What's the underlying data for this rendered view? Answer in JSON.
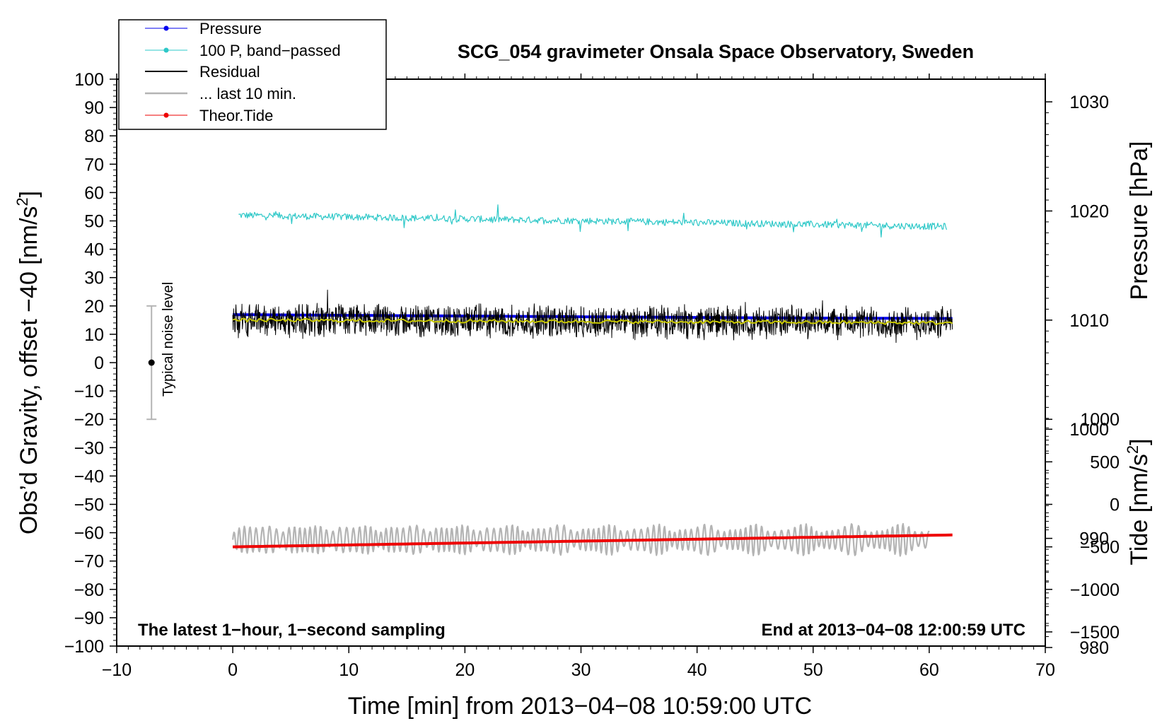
{
  "chart_data": {
    "type": "line",
    "title": "SCG_054 gravimeter Onsala Space Observatory, Sweden",
    "xlabel": "Time [min] from 2013−04−08 10:59:00 UTC",
    "xlim": [
      -10,
      70
    ],
    "xticks": [
      -10,
      0,
      10,
      20,
      30,
      40,
      50,
      60,
      70
    ],
    "xtick_labels": [
      "−10",
      "0",
      "10",
      "20",
      "30",
      "40",
      "50",
      "60",
      "70"
    ],
    "y_left": {
      "label_main": "Obs’d Gravity, offset −40 [nm/s",
      "label_sup": "2",
      "label_end": "]",
      "lim": [
        -100,
        100
      ],
      "ticks": [
        100,
        90,
        80,
        70,
        60,
        50,
        40,
        30,
        20,
        10,
        0,
        -10,
        -20,
        -30,
        -40,
        -50,
        -60,
        -70,
        -80,
        -90,
        -100
      ],
      "tick_labels": [
        "100",
        "90",
        "80",
        "70",
        "60",
        "50",
        "40",
        "30",
        "20",
        "10",
        "0",
        "−10",
        "−20",
        "−30",
        "−40",
        "−50",
        "−60",
        "−70",
        "−80",
        "−90",
        "−100"
      ]
    },
    "y_right_pressure": {
      "label": "Pressure [hPa]",
      "ticks": [
        1030,
        1020,
        1010,
        1000,
        990,
        980
      ],
      "tick_labels": [
        "1030",
        "1020",
        "1010",
        "1000",
        "990",
        "980"
      ],
      "left_axis_at_1030": 92,
      "left_units_per_hPa": 3.85
    },
    "y_right_tide": {
      "label_main": "Tide [nm/s",
      "label_sup": "2",
      "label_end": "]",
      "ticks": [
        1000,
        500,
        0,
        -500,
        -1000,
        -1500
      ],
      "tick_labels": [
        "1000",
        "500",
        "0",
        "−500",
        "−1000",
        "−1500"
      ],
      "left_axis_at_0": -50,
      "left_units_per_tide": 0.03
    },
    "legend": [
      "Pressure",
      "100 P, band−passed",
      "Residual",
      "... last 10 min.",
      "Theor.Tide"
    ],
    "legend_position": "top-left",
    "series": [
      {
        "name": "Pressure",
        "color": "#0000ee",
        "x_range": [
          0,
          62
        ],
        "unit": "hPa",
        "values": [
          1010.5,
          1010.4,
          1010.3,
          1010.2,
          1010.15
        ]
      },
      {
        "name": "100 P, band−passed",
        "color": "#2ec8c8",
        "x_range": [
          0.5,
          61.5
        ],
        "values": [
          52,
          48
        ]
      },
      {
        "name": "Residual",
        "color": "#000000",
        "x_range": [
          0,
          62
        ],
        "values": [
          15,
          14
        ],
        "noise_amplitude": 6
      },
      {
        "name": "Residual smoothed",
        "color": "#c8c800",
        "x_range": [
          0,
          62
        ],
        "values": [
          15,
          14
        ]
      },
      {
        "name": "... last 10 min.",
        "color": "#b4b4b4",
        "x_range": [
          0,
          60
        ],
        "values": [
          -62.5,
          -62.5
        ],
        "amplitude": 5
      },
      {
        "name": "Theor.Tide",
        "color": "#ee0000",
        "x_range": [
          0,
          62
        ],
        "values": [
          -65,
          -60.8
        ]
      }
    ],
    "noise_bar": {
      "label": "Typical noise level",
      "x": -7,
      "center": 0,
      "low": -20,
      "high": 20
    },
    "annotations": {
      "bottom_left": "The latest 1−hour, 1−second sampling",
      "bottom_right": "End at 2013−04−08 12:00:59 UTC"
    },
    "colors": {
      "pressure": "#0000ee",
      "bandpassed": "#2ec8c8",
      "residual": "#000000",
      "smoothed": "#c8c800",
      "last10": "#b4b4b4",
      "tide": "#ee0000",
      "noise_bar": "#b4b4b4"
    }
  }
}
